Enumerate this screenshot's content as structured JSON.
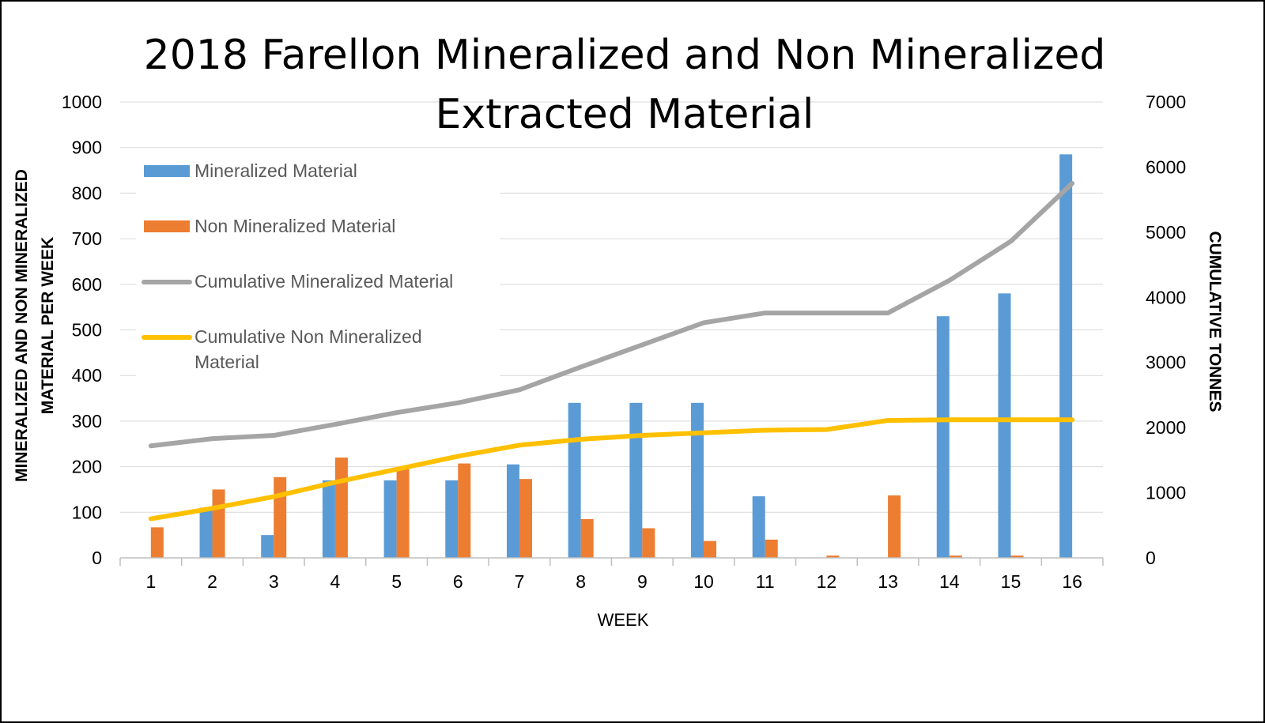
{
  "chart_data": {
    "type": "bar",
    "title_lines": [
      "2018 Farellon Mineralized and Non Mineralized",
      "Extracted Material"
    ],
    "xlabel": "WEEK",
    "ylabel_lines": [
      "MINERALIZED AND NON MINERALIZED",
      "MATERIAL PER WEEK"
    ],
    "y2label": "CUMULATIVE TONNES",
    "categories": [
      "1",
      "2",
      "3",
      "4",
      "5",
      "6",
      "7",
      "8",
      "9",
      "10",
      "11",
      "12",
      "13",
      "14",
      "15",
      "16"
    ],
    "ylim": [
      0,
      1000
    ],
    "y_ticks": [
      0,
      100,
      200,
      300,
      400,
      500,
      600,
      700,
      800,
      900,
      1000
    ],
    "y2lim": [
      0,
      7000
    ],
    "y2_ticks": [
      0,
      1000,
      2000,
      3000,
      4000,
      5000,
      6000,
      7000
    ],
    "grid": true,
    "legend_position": "top-left",
    "series": [
      {
        "name": "Mineralized Material",
        "type": "bar",
        "axis": "left",
        "color": "#5B9BD5",
        "values": [
          0,
          110,
          50,
          170,
          170,
          170,
          205,
          340,
          340,
          340,
          135,
          0,
          0,
          530,
          580,
          885
        ]
      },
      {
        "name": "Non Mineralized Material",
        "type": "bar",
        "axis": "left",
        "color": "#ED7D31",
        "values": [
          67,
          150,
          177,
          220,
          195,
          207,
          173,
          85,
          65,
          37,
          40,
          5,
          137,
          5,
          5,
          0
        ]
      },
      {
        "name": "Cumulative Mineralized Material",
        "type": "line",
        "axis": "right",
        "color": "#A5A5A5",
        "values": [
          1720,
          1830,
          1880,
          2050,
          2230,
          2380,
          2580,
          2930,
          3270,
          3610,
          3760,
          3760,
          3760,
          4260,
          4860,
          5750
        ]
      },
      {
        "name": "Cumulative Non Mineralized Material",
        "type": "line",
        "axis": "right",
        "color": "#FFC000",
        "values": [
          600,
          760,
          940,
          1160,
          1360,
          1560,
          1730,
          1820,
          1880,
          1920,
          1960,
          1970,
          2110,
          2120,
          2120,
          2120
        ]
      }
    ]
  }
}
